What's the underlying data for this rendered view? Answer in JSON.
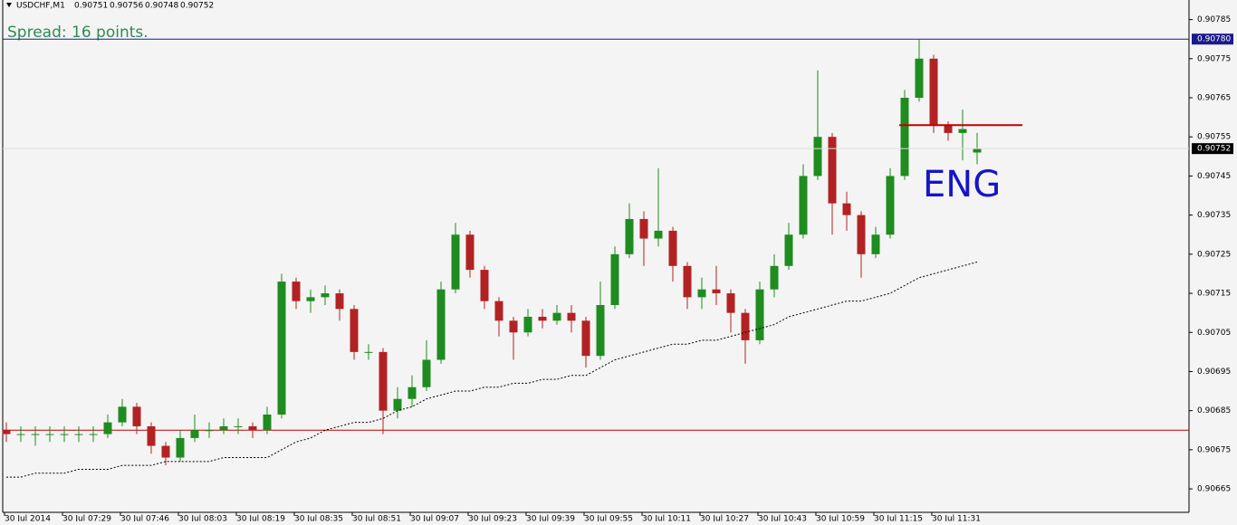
{
  "chart_data": {
    "type": "candlestick",
    "symbol": "USDCHF,M1",
    "header_ohlc": [
      0.90751,
      0.90756,
      0.90748,
      0.90752
    ],
    "spread_text": "Spread: 16 points.",
    "annotation": "ENG",
    "up_color": "#1e8c1e",
    "down_color": "#b22222",
    "open": [
      0.9068,
      0.90679,
      0.90679,
      0.90679,
      0.90679,
      0.90679,
      0.90679,
      0.90679,
      0.90682,
      0.90686,
      0.90681,
      0.90676,
      0.90673,
      0.90678,
      0.9068,
      0.9068,
      0.90681,
      0.90681,
      0.9068,
      0.90684,
      0.90718,
      0.90713,
      0.90714,
      0.90715,
      0.90711,
      0.907,
      0.907,
      0.90685,
      0.90688,
      0.90691,
      0.90698,
      0.90716,
      0.9073,
      0.90721,
      0.90713,
      0.90708,
      0.90705,
      0.90709,
      0.90708,
      0.9071,
      0.90708,
      0.90699,
      0.90712,
      0.90725,
      0.90734,
      0.90729,
      0.90731,
      0.90722,
      0.90714,
      0.90716,
      0.90715,
      0.9071,
      0.90703,
      0.90716,
      0.90722,
      0.9073,
      0.90745,
      0.90755,
      0.90738,
      0.90735,
      0.90725,
      0.9073,
      0.90745,
      0.90765,
      0.90775,
      0.90758,
      0.90756,
      0.90751
    ],
    "high": [
      0.90682,
      0.90681,
      0.90681,
      0.90681,
      0.90681,
      0.90681,
      0.90681,
      0.90684,
      0.90688,
      0.90687,
      0.90682,
      0.90677,
      0.9068,
      0.90684,
      0.90682,
      0.90683,
      0.90683,
      0.90682,
      0.90686,
      0.9072,
      0.90719,
      0.90716,
      0.90717,
      0.90716,
      0.90712,
      0.90702,
      0.90701,
      0.90691,
      0.90694,
      0.90703,
      0.90718,
      0.90733,
      0.90731,
      0.90722,
      0.90714,
      0.90709,
      0.90711,
      0.90711,
      0.90712,
      0.90712,
      0.90709,
      0.90718,
      0.90727,
      0.90738,
      0.90736,
      0.90747,
      0.90732,
      0.90723,
      0.90719,
      0.90722,
      0.90716,
      0.90711,
      0.90718,
      0.90725,
      0.90733,
      0.90748,
      0.90772,
      0.90756,
      0.90741,
      0.90736,
      0.90732,
      0.90747,
      0.90767,
      0.9078,
      0.90776,
      0.90759,
      0.90762,
      0.90756
    ],
    "low": [
      0.90677,
      0.90677,
      0.90676,
      0.90677,
      0.90677,
      0.90677,
      0.90677,
      0.90678,
      0.90681,
      0.90679,
      0.90674,
      0.90671,
      0.90672,
      0.90677,
      0.90678,
      0.90679,
      0.90679,
      0.90678,
      0.90679,
      0.90683,
      0.90711,
      0.9071,
      0.90712,
      0.90708,
      0.90698,
      0.90698,
      0.90679,
      0.90683,
      0.90686,
      0.9069,
      0.90697,
      0.90715,
      0.90719,
      0.90711,
      0.90704,
      0.90698,
      0.90704,
      0.90706,
      0.90707,
      0.90705,
      0.90696,
      0.90698,
      0.90711,
      0.90724,
      0.90722,
      0.90727,
      0.90718,
      0.90711,
      0.90711,
      0.90712,
      0.90705,
      0.90697,
      0.90702,
      0.90714,
      0.90721,
      0.90729,
      0.90744,
      0.9073,
      0.90731,
      0.90719,
      0.90724,
      0.90729,
      0.90744,
      0.90764,
      0.90756,
      0.90754,
      0.90749,
      0.90748
    ],
    "close": [
      0.90679,
      0.90679,
      0.90679,
      0.90679,
      0.90679,
      0.90679,
      0.90679,
      0.90682,
      0.90686,
      0.90681,
      0.90676,
      0.90673,
      0.90678,
      0.9068,
      0.9068,
      0.90681,
      0.90681,
      0.9068,
      0.90684,
      0.90718,
      0.90713,
      0.90714,
      0.90715,
      0.90711,
      0.907,
      0.907,
      0.90685,
      0.90688,
      0.90691,
      0.90698,
      0.90716,
      0.9073,
      0.90721,
      0.90713,
      0.90708,
      0.90705,
      0.90709,
      0.90708,
      0.9071,
      0.90708,
      0.90699,
      0.90712,
      0.90725,
      0.90734,
      0.90729,
      0.90731,
      0.90722,
      0.90714,
      0.90716,
      0.90715,
      0.9071,
      0.90703,
      0.90716,
      0.90722,
      0.9073,
      0.90745,
      0.90755,
      0.90738,
      0.90735,
      0.90725,
      0.9073,
      0.90745,
      0.90765,
      0.90775,
      0.90758,
      0.90756,
      0.90757,
      0.90752
    ],
    "ma": [
      0.90668,
      0.90668,
      0.90669,
      0.90669,
      0.90669,
      0.9067,
      0.9067,
      0.9067,
      0.90671,
      0.90671,
      0.90671,
      0.90672,
      0.90672,
      0.90672,
      0.90672,
      0.90673,
      0.90673,
      0.90673,
      0.90673,
      0.90675,
      0.90677,
      0.90678,
      0.9068,
      0.90681,
      0.90682,
      0.90682,
      0.90683,
      0.90685,
      0.90686,
      0.90688,
      0.90689,
      0.9069,
      0.9069,
      0.90691,
      0.90691,
      0.90692,
      0.90692,
      0.90693,
      0.90693,
      0.90694,
      0.90694,
      0.90696,
      0.90698,
      0.90699,
      0.907,
      0.90701,
      0.90702,
      0.90702,
      0.90703,
      0.90703,
      0.90704,
      0.90705,
      0.90706,
      0.90707,
      0.90709,
      0.9071,
      0.90711,
      0.90712,
      0.90713,
      0.90713,
      0.90714,
      0.90715,
      0.90717,
      0.90719,
      0.9072,
      0.90721,
      0.90722,
      0.90723
    ],
    "categories": [
      "30 Jul 2014",
      "30 Jul 07:29",
      "30 Jul 07:46",
      "30 Jul 08:03",
      "30 Jul 08:19",
      "30 Jul 08:35",
      "30 Jul 08:51",
      "30 Jul 09:07",
      "30 Jul 09:23",
      "30 Jul 09:39",
      "30 Jul 09:55",
      "30 Jul 10:11",
      "30 Jul 10:27",
      "30 Jul 10:43",
      "30 Jul 10:59",
      "30 Jul 11:15",
      "30 Jul 11:31"
    ],
    "ylim": [
      0.90659,
      0.9079
    ],
    "yticks": [
      0.90665,
      0.90675,
      0.90685,
      0.90695,
      0.90705,
      0.90715,
      0.90725,
      0.90735,
      0.90745,
      0.90755,
      0.90765,
      0.90775,
      0.90785
    ],
    "hlines": [
      {
        "value": 0.9078,
        "label": "0.90780",
        "color": "#1a1a8c"
      },
      {
        "value": 0.9068,
        "color": "#c00000"
      }
    ],
    "segment": {
      "value": 0.90758,
      "color": "#c00000"
    },
    "last_price": 0.90752
  }
}
